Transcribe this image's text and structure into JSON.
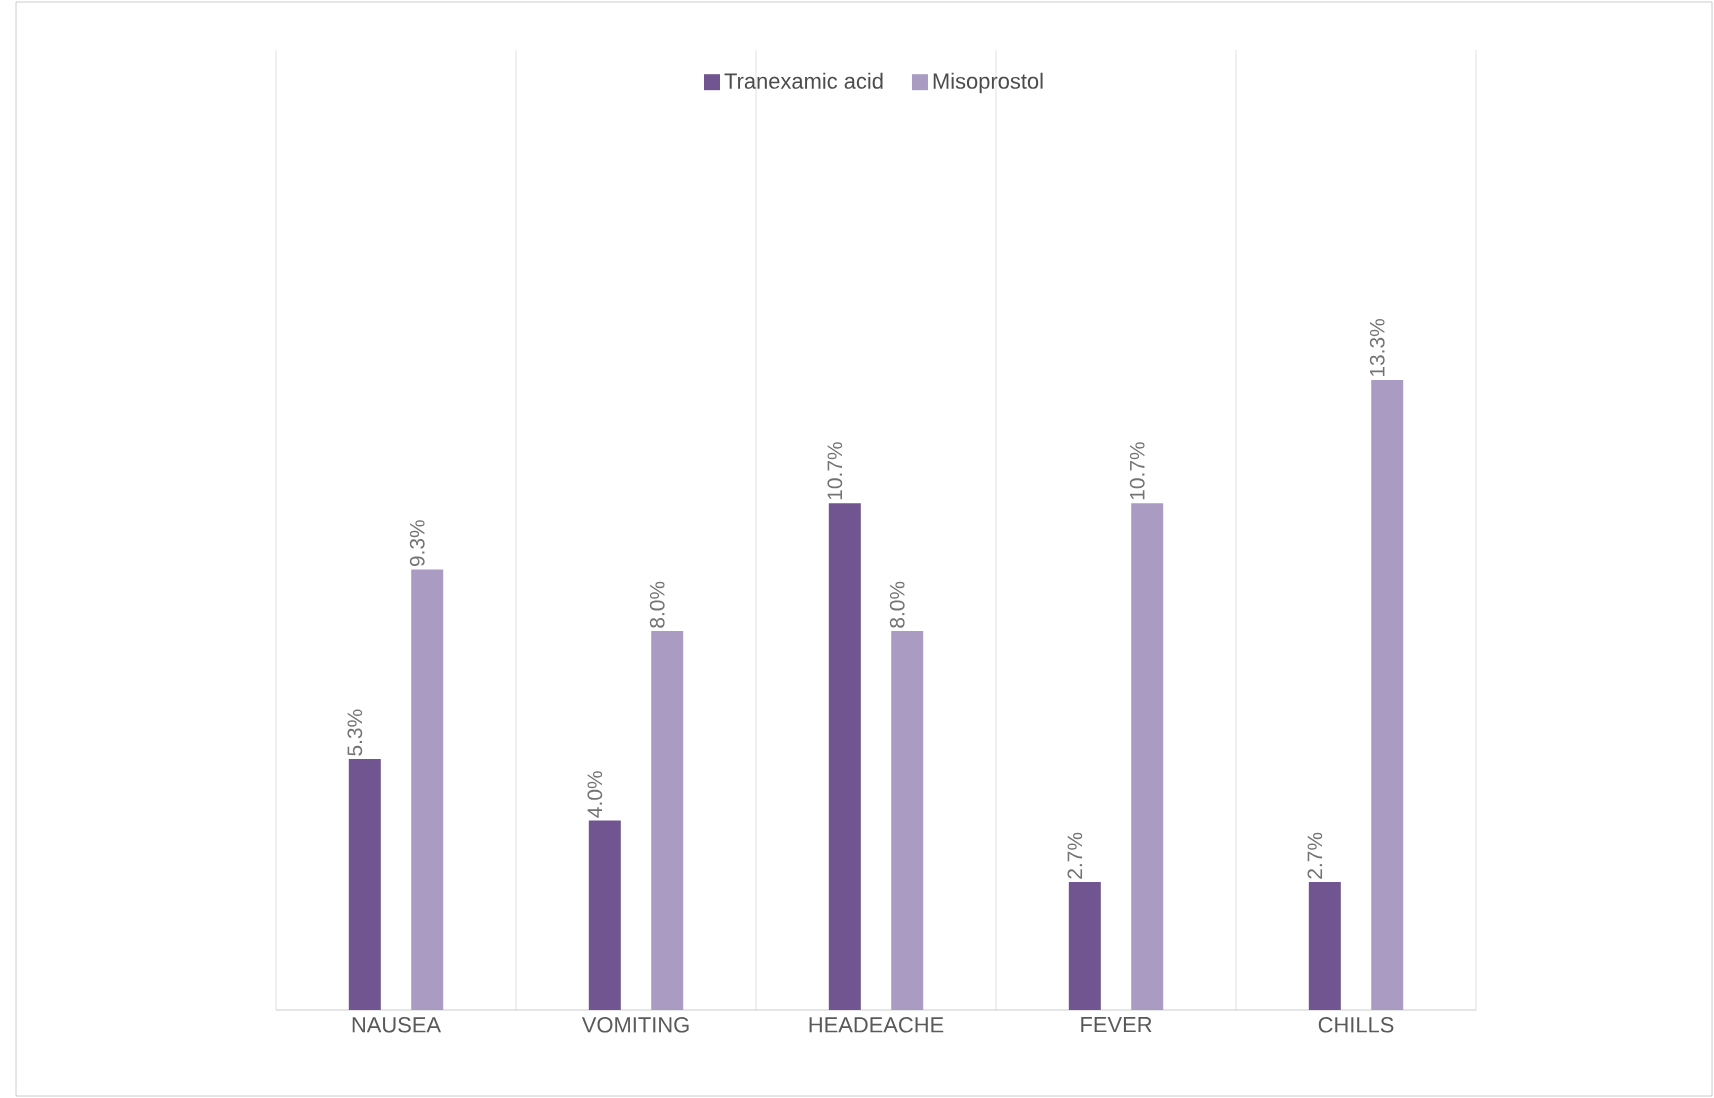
{
  "chart_data": {
    "type": "bar",
    "categories": [
      "NAUSEA",
      "VOMITING",
      "HEADEACHE",
      "FEVER",
      "CHILLS"
    ],
    "series": [
      {
        "name": "Tranexamic acid",
        "color": "#705590",
        "values": [
          5.3,
          4.0,
          10.7,
          2.7,
          2.7
        ],
        "value_labels": [
          "5.3%",
          "4.0%",
          "10.7%",
          "2.7%",
          "2.7%"
        ]
      },
      {
        "name": "Misoprostol",
        "color": "#a99bc1",
        "values": [
          9.3,
          8.0,
          8.0,
          10.7,
          13.3
        ],
        "value_labels": [
          "9.3%",
          "8.0%",
          "8.0%",
          "10.7%",
          "13.3%"
        ]
      }
    ],
    "grid": "x",
    "legend": "top"
  }
}
